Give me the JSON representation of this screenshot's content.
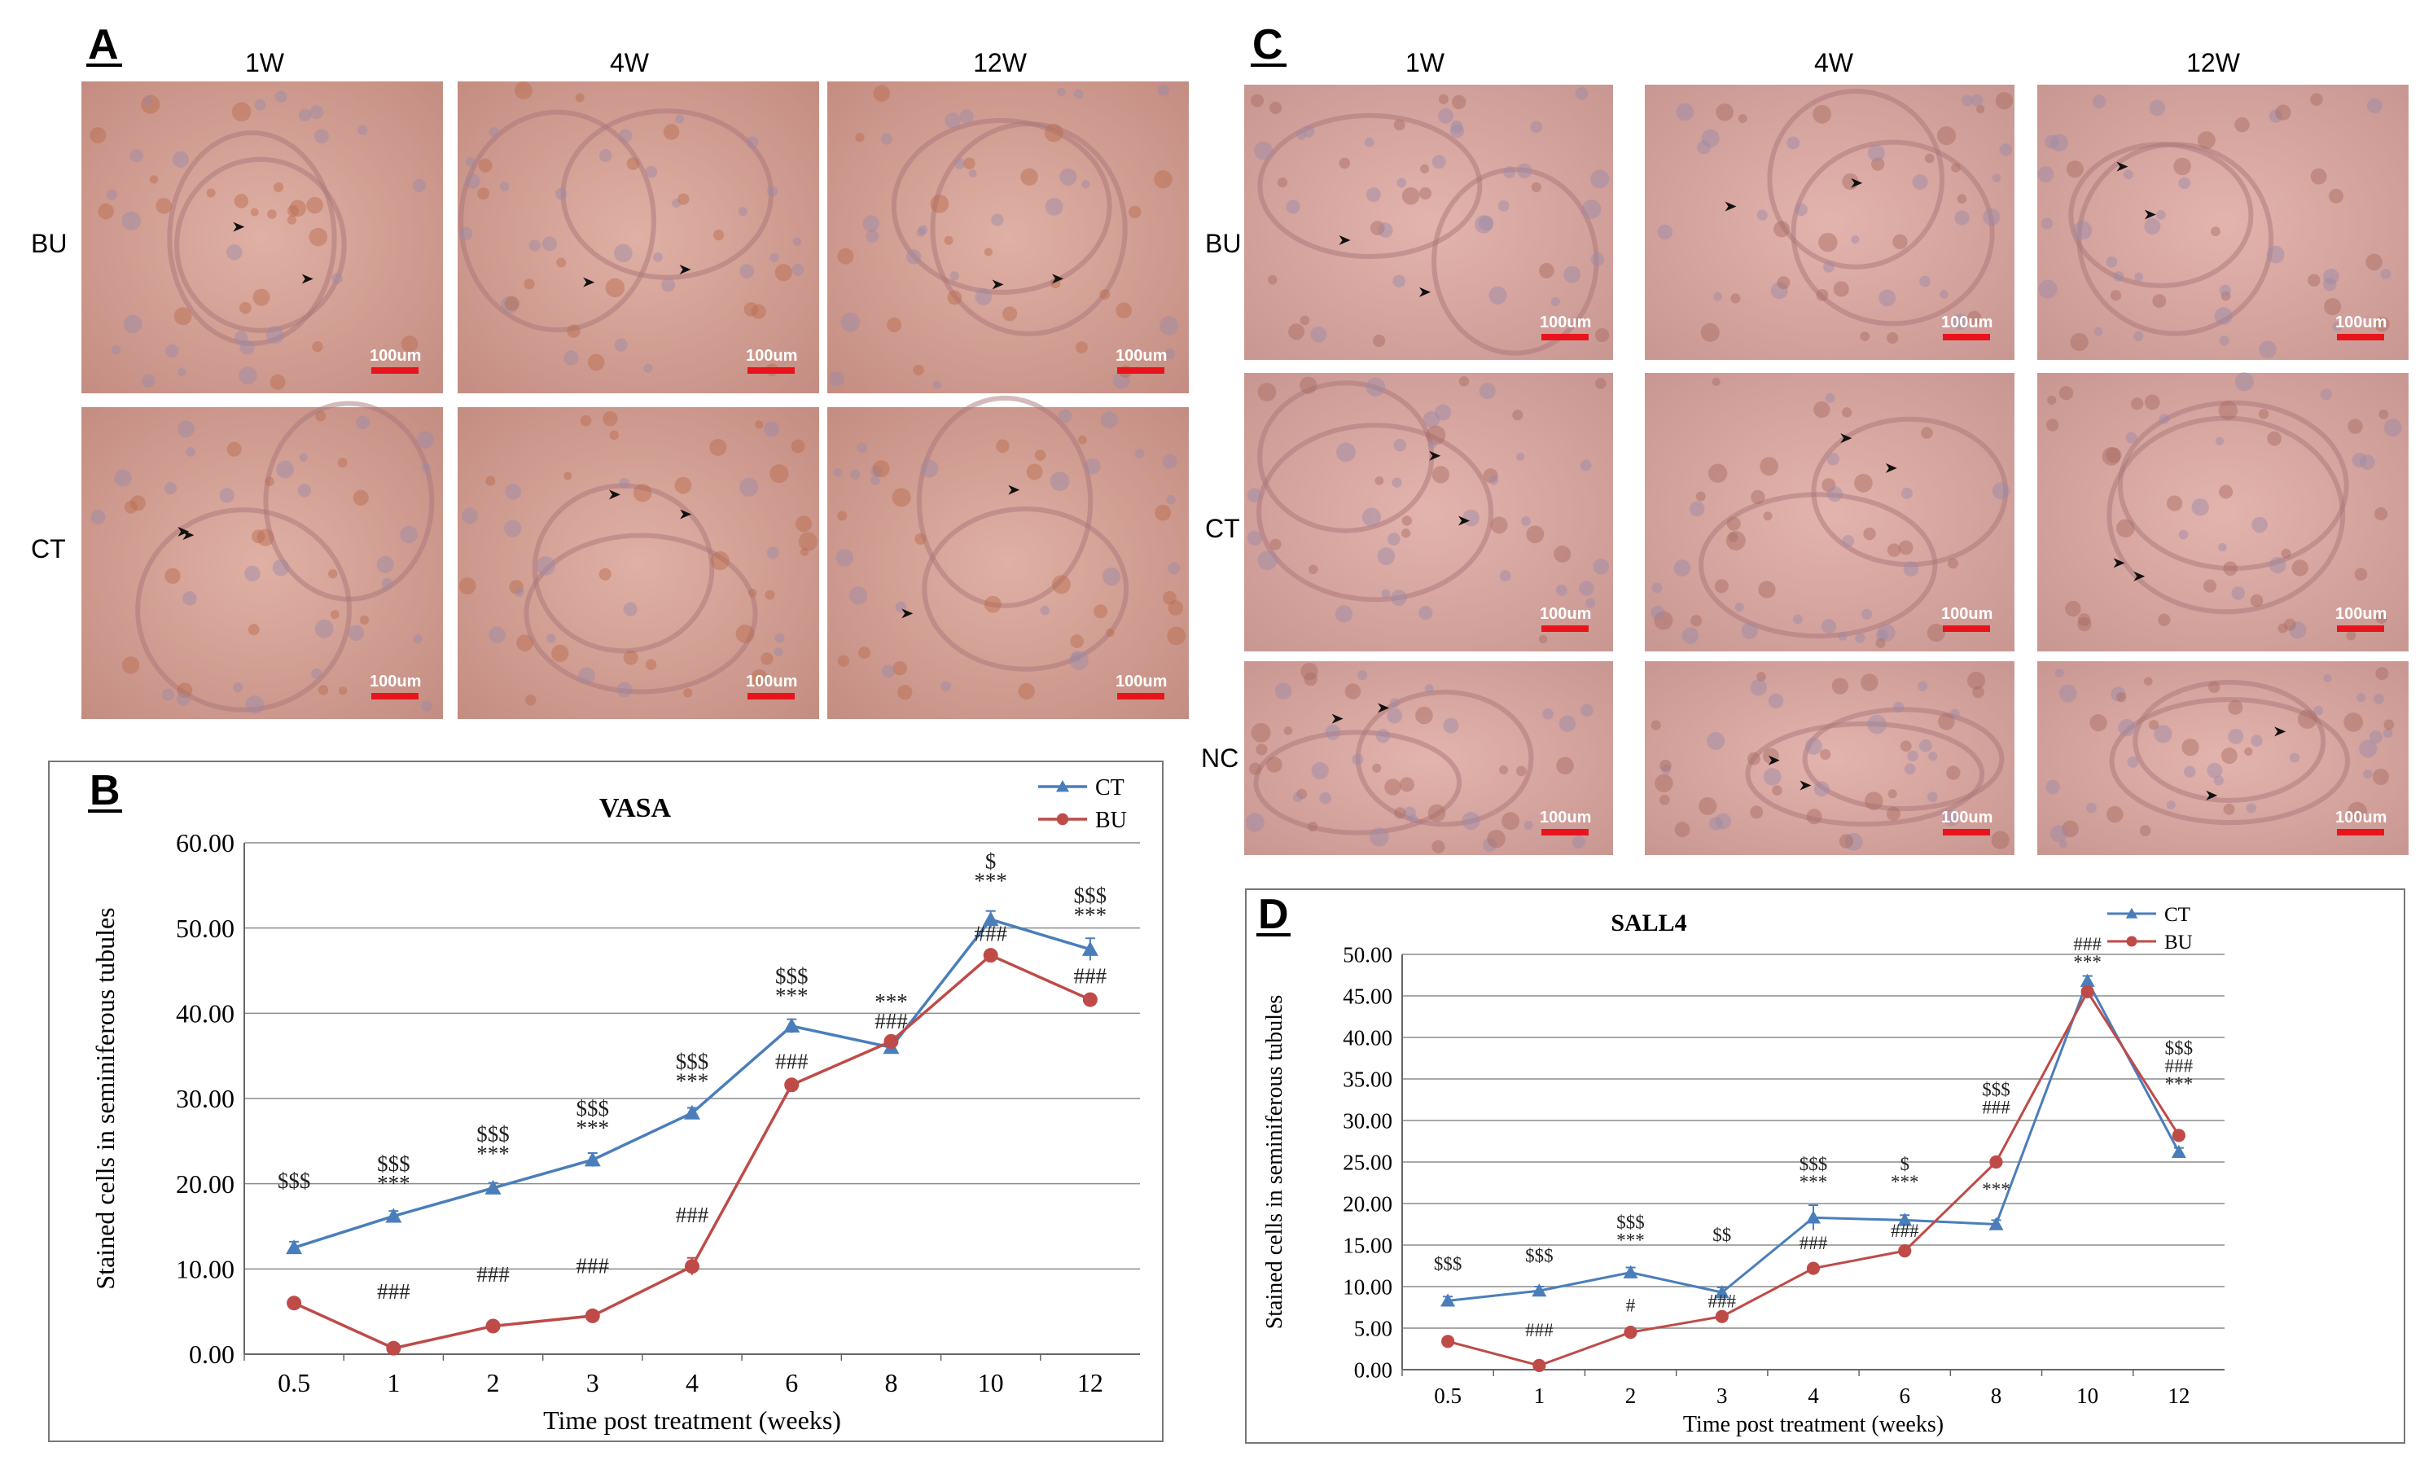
{
  "panels": {
    "A": {
      "letter": "A",
      "columns": [
        "1W",
        "4W",
        "12W"
      ],
      "rows": [
        "BU",
        "CT"
      ],
      "scale_label": "100um"
    },
    "C": {
      "letter": "C",
      "columns": [
        "1W",
        "4W",
        "12W"
      ],
      "rows": [
        "BU",
        "CT",
        "NC"
      ],
      "scale_label": "100um"
    }
  },
  "colors": {
    "ct": "#4a7ebb",
    "bu": "#be4b48",
    "tissue_bg": "#d9a39c",
    "tissue_dark": "#b88378",
    "scale_bar": "#e8141c"
  },
  "chart_data": [
    {
      "panel_letter": "B",
      "type": "line",
      "title": "VASA",
      "xlabel": "Time post treatment (weeks)",
      "ylabel": "Stained cells in seminiferous tubules",
      "categories": [
        "0.5",
        "1",
        "2",
        "3",
        "4",
        "6",
        "8",
        "10",
        "12"
      ],
      "yticks": [
        "0.00",
        "10.00",
        "20.00",
        "30.00",
        "40.00",
        "50.00",
        "60.00"
      ],
      "ylim": [
        0,
        60
      ],
      "grid": true,
      "legend_position": "top-right",
      "series": [
        {
          "name": "CT",
          "marker": "triangle",
          "values": [
            12.5,
            16.2,
            19.5,
            22.8,
            28.3,
            38.5,
            36.0,
            51.0,
            47.5
          ],
          "errors": [
            0.7,
            0.6,
            0.6,
            0.8,
            0.6,
            0.8,
            0.6,
            1.0,
            1.3
          ]
        },
        {
          "name": "BU",
          "marker": "circle",
          "values": [
            6.0,
            0.7,
            3.3,
            4.5,
            10.3,
            31.6,
            36.7,
            46.8,
            41.6
          ],
          "errors": [
            0.3,
            0.2,
            0.3,
            0.3,
            1.0,
            0.5,
            0.4,
            0.5,
            0.5
          ]
        }
      ],
      "annotations": [
        {
          "index": 0,
          "lines": [
            "$$$"
          ],
          "level": 19.5
        },
        {
          "index": 1,
          "lines": [
            "$$$",
            "***"
          ],
          "level": 21.5
        },
        {
          "index": 2,
          "lines": [
            "$$$",
            "***"
          ],
          "level": 25.0
        },
        {
          "index": 3,
          "lines": [
            "$$$",
            "***"
          ],
          "level": 28.0
        },
        {
          "index": 4,
          "lines": [
            "$$$",
            "***"
          ],
          "level": 33.5
        },
        {
          "index": 5,
          "lines": [
            "$$$",
            "***"
          ],
          "level": 43.5
        },
        {
          "index": 6,
          "lines": [
            "***",
            "###"
          ],
          "level": 40.5
        },
        {
          "index": 7,
          "lines": [
            "$",
            "***"
          ],
          "level": 57.0
        },
        {
          "index": 8,
          "lines": [
            "$$$",
            "***"
          ],
          "level": 53.0
        },
        {
          "index": 1,
          "lines": [
            "###"
          ],
          "level": 6.5
        },
        {
          "index": 2,
          "lines": [
            "###"
          ],
          "level": 8.5
        },
        {
          "index": 3,
          "lines": [
            "###"
          ],
          "level": 9.5
        },
        {
          "index": 4,
          "lines": [
            "###"
          ],
          "level": 15.5
        },
        {
          "index": 5,
          "lines": [
            "###"
          ],
          "level": 33.5
        },
        {
          "index": 7,
          "lines": [
            "###"
          ],
          "level": 48.5
        },
        {
          "index": 8,
          "lines": [
            "###"
          ],
          "level": 43.5
        }
      ]
    },
    {
      "panel_letter": "D",
      "type": "line",
      "title": "SALL4",
      "xlabel": "Time post treatment (weeks)",
      "ylabel": "Stained cells in seminiferous tubules",
      "categories": [
        "0.5",
        "1",
        "2",
        "3",
        "4",
        "6",
        "8",
        "10",
        "12"
      ],
      "yticks": [
        "0.00",
        "5.00",
        "10.00",
        "15.00",
        "20.00",
        "25.00",
        "30.00",
        "35.00",
        "40.00",
        "45.00",
        "50.00"
      ],
      "ylim": [
        0,
        50
      ],
      "grid": true,
      "legend_position": "top-right",
      "series": [
        {
          "name": "CT",
          "marker": "triangle",
          "values": [
            8.3,
            9.5,
            11.7,
            9.3,
            18.3,
            18.0,
            17.5,
            46.8,
            26.2
          ],
          "errors": [
            0.5,
            0.5,
            0.6,
            0.6,
            1.5,
            0.6,
            0.5,
            0.6,
            0.5
          ]
        },
        {
          "name": "BU",
          "marker": "circle",
          "values": [
            3.4,
            0.5,
            4.5,
            6.4,
            12.2,
            14.3,
            25.0,
            45.5,
            28.2
          ],
          "errors": [
            0.2,
            0.1,
            0.2,
            0.3,
            0.3,
            0.4,
            0.4,
            0.5,
            0.4
          ]
        }
      ],
      "annotations": [
        {
          "index": 0,
          "lines": [
            "$$$"
          ],
          "level": 12.0
        },
        {
          "index": 1,
          "lines": [
            "$$$"
          ],
          "level": 13.0
        },
        {
          "index": 2,
          "lines": [
            "$$$",
            "***"
          ],
          "level": 17.0
        },
        {
          "index": 3,
          "lines": [
            "$$"
          ],
          "level": 15.5
        },
        {
          "index": 4,
          "lines": [
            "$$$",
            "***"
          ],
          "level": 24.0
        },
        {
          "index": 5,
          "lines": [
            "$",
            "***"
          ],
          "level": 24.0
        },
        {
          "index": 6,
          "lines": [
            "$$$",
            "###"
          ],
          "level": 33.0
        },
        {
          "index": 7,
          "lines": [
            "###",
            "***"
          ],
          "level": 50.5
        },
        {
          "index": 8,
          "lines": [
            "$$$",
            "###",
            "***"
          ],
          "level": 38.0
        },
        {
          "index": 1,
          "lines": [
            "###"
          ],
          "level": 4.0
        },
        {
          "index": 2,
          "lines": [
            "#"
          ],
          "level": 7.0
        },
        {
          "index": 3,
          "lines": [
            "###"
          ],
          "level": 7.5
        },
        {
          "index": 4,
          "lines": [
            "###"
          ],
          "level": 14.5
        },
        {
          "index": 5,
          "lines": [
            "###"
          ],
          "level": 16.0
        },
        {
          "index": 6,
          "lines": [
            "***"
          ],
          "level": 21.0
        }
      ]
    }
  ]
}
